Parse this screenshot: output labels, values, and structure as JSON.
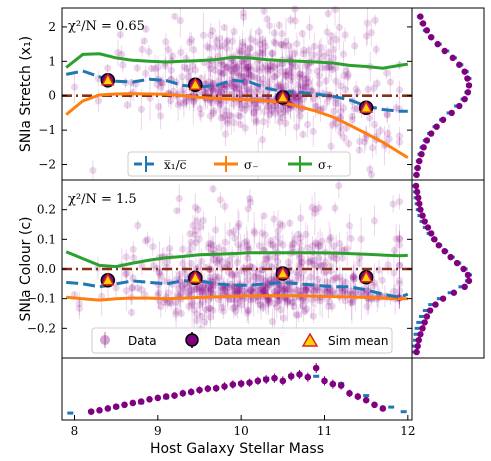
{
  "colors": {
    "data": "#800080",
    "data_alpha_fill": "#cc99cc",
    "model_mean": "#1f77b4",
    "sigma_minus": "#ff7f0e",
    "sigma_plus": "#2ca02c",
    "zero_line": "#8b2e16",
    "sim_marker_fill": "#ffd400",
    "sim_marker_edge": "#d62728"
  },
  "chart_data": [
    {
      "id": "stretch",
      "type": "scatter",
      "ylabel": "SNIa Stretch (x₁)",
      "annotation": "χ²/N = 0.65",
      "xlim": [
        7.85,
        12.05
      ],
      "ylim": [
        -2.45,
        2.55
      ],
      "yticks": [
        -2,
        -1,
        0,
        1,
        2
      ],
      "grid": false,
      "legend": {
        "placement": "bottom-center",
        "entries": [
          "x̅₁/c̅",
          "σ₋",
          "σ₊"
        ]
      },
      "lines": {
        "model_mean": {
          "x": [
            7.9,
            8.1,
            8.3,
            8.5,
            8.7,
            8.9,
            9.1,
            9.3,
            9.5,
            9.7,
            9.9,
            10.1,
            10.3,
            10.5,
            10.7,
            10.9,
            11.1,
            11.3,
            11.5,
            11.7,
            11.9,
            12.0
          ],
          "y": [
            0.62,
            0.72,
            0.55,
            0.42,
            0.4,
            0.48,
            0.44,
            0.3,
            0.25,
            0.3,
            0.45,
            0.4,
            0.22,
            0.12,
            0.1,
            0.05,
            -0.02,
            -0.12,
            -0.3,
            -0.4,
            -0.45,
            -0.45
          ]
        },
        "sigma_minus": {
          "x": [
            7.9,
            8.1,
            8.3,
            8.5,
            8.7,
            8.9,
            9.1,
            9.3,
            9.5,
            9.7,
            9.9,
            10.1,
            10.3,
            10.5,
            10.7,
            10.9,
            11.1,
            11.3,
            11.5,
            11.7,
            11.9,
            12.0
          ],
          "y": [
            -0.55,
            -0.15,
            0.02,
            0.05,
            0.06,
            0.05,
            0.04,
            0.0,
            -0.05,
            -0.08,
            -0.1,
            -0.12,
            -0.15,
            -0.2,
            -0.32,
            -0.45,
            -0.62,
            -0.85,
            -1.1,
            -1.35,
            -1.65,
            -1.8
          ]
        },
        "sigma_plus": {
          "x": [
            7.9,
            8.1,
            8.3,
            8.5,
            8.7,
            8.9,
            9.1,
            9.3,
            9.5,
            9.7,
            9.9,
            10.1,
            10.3,
            10.5,
            10.7,
            10.9,
            11.1,
            11.3,
            11.5,
            11.7,
            11.9,
            12.0
          ],
          "y": [
            0.82,
            1.2,
            1.22,
            1.1,
            1.03,
            1.0,
            0.98,
            1.0,
            1.02,
            1.05,
            1.12,
            1.1,
            1.05,
            1.02,
            1.0,
            0.98,
            0.95,
            0.88,
            0.85,
            0.8,
            0.88,
            0.92
          ]
        },
        "zero": {
          "y": 0.0
        }
      },
      "data_mean": {
        "x": [
          8.4,
          9.45,
          10.5,
          11.5
        ],
        "y": [
          0.45,
          0.32,
          -0.05,
          -0.35
        ],
        "yerr": [
          0.08,
          0.06,
          0.07,
          0.09
        ]
      },
      "sim_mean": {
        "x": [
          8.4,
          9.45,
          10.5,
          11.5
        ],
        "y": [
          0.45,
          0.32,
          -0.05,
          -0.35
        ]
      },
      "side_histogram": {
        "bins": [
          2.5,
          2.3,
          2.1,
          1.9,
          1.7,
          1.5,
          1.3,
          1.1,
          0.9,
          0.7,
          0.5,
          0.3,
          0.1,
          -0.1,
          -0.3,
          -0.5,
          -0.7,
          -0.9,
          -1.1,
          -1.3,
          -1.5,
          -1.7,
          -1.9,
          -2.1,
          -2.3
        ],
        "data": [
          0.06,
          0.1,
          0.15,
          0.22,
          0.3,
          0.42,
          0.55,
          0.7,
          0.82,
          0.92,
          0.97,
          1.0,
          0.98,
          0.92,
          0.82,
          0.68,
          0.52,
          0.4,
          0.3,
          0.22,
          0.16,
          0.12,
          0.08,
          0.05,
          0.03
        ],
        "model": [
          0.05,
          0.09,
          0.14,
          0.2,
          0.3,
          0.44,
          0.58,
          0.72,
          0.84,
          0.94,
          0.99,
          1.0,
          0.97,
          0.9,
          0.78,
          0.64,
          0.5,
          0.38,
          0.28,
          0.2,
          0.14,
          0.1,
          0.07,
          0.04,
          0.02
        ]
      }
    },
    {
      "id": "colour",
      "type": "scatter",
      "ylabel": "SNIa Colour (c)",
      "annotation": "χ²/N = 1.5",
      "xlim": [
        7.85,
        12.05
      ],
      "ylim": [
        -0.3,
        0.3
      ],
      "yticks": [
        -0.2,
        -0.1,
        0.0,
        0.1,
        0.2
      ],
      "grid": false,
      "legend": {
        "placement": "bottom-center",
        "entries": [
          "Data",
          "Data mean",
          "Sim mean"
        ]
      },
      "lines": {
        "model_mean": {
          "x": [
            7.9,
            8.1,
            8.3,
            8.5,
            8.7,
            8.9,
            9.1,
            9.3,
            9.5,
            9.7,
            9.9,
            10.1,
            10.3,
            10.5,
            10.7,
            10.9,
            11.1,
            11.3,
            11.5,
            11.7,
            11.9,
            12.0
          ],
          "y": [
            -0.045,
            -0.05,
            -0.06,
            -0.05,
            -0.04,
            -0.045,
            -0.05,
            -0.04,
            -0.04,
            -0.05,
            -0.055,
            -0.055,
            -0.05,
            -0.045,
            -0.05,
            -0.055,
            -0.06,
            -0.06,
            -0.07,
            -0.085,
            -0.095,
            -0.085
          ]
        },
        "sigma_minus": {
          "x": [
            7.9,
            8.1,
            8.3,
            8.5,
            8.7,
            8.9,
            9.1,
            9.3,
            9.5,
            9.7,
            9.9,
            10.1,
            10.3,
            10.5,
            10.7,
            10.9,
            11.1,
            11.3,
            11.5,
            11.7,
            11.9,
            12.0
          ],
          "y": [
            -0.095,
            -0.1,
            -0.105,
            -0.1,
            -0.098,
            -0.098,
            -0.1,
            -0.098,
            -0.096,
            -0.094,
            -0.092,
            -0.09,
            -0.09,
            -0.09,
            -0.09,
            -0.092,
            -0.093,
            -0.094,
            -0.096,
            -0.098,
            -0.1,
            -0.1
          ]
        },
        "sigma_plus": {
          "x": [
            7.9,
            8.1,
            8.3,
            8.5,
            8.7,
            8.9,
            9.1,
            9.3,
            9.5,
            9.7,
            9.9,
            10.1,
            10.3,
            10.5,
            10.7,
            10.9,
            11.1,
            11.3,
            11.5,
            11.7,
            11.9,
            12.0
          ],
          "y": [
            0.058,
            0.035,
            0.012,
            0.008,
            0.02,
            0.03,
            0.038,
            0.042,
            0.048,
            0.05,
            0.052,
            0.055,
            0.055,
            0.055,
            0.055,
            0.055,
            0.054,
            0.052,
            0.05,
            0.047,
            0.045,
            0.046
          ]
        },
        "zero": {
          "y": 0.0
        }
      },
      "data_mean": {
        "x": [
          8.4,
          9.45,
          10.5,
          11.5
        ],
        "y": [
          -0.038,
          -0.03,
          -0.015,
          -0.028
        ],
        "yerr": [
          0.006,
          0.005,
          0.005,
          0.006
        ]
      },
      "sim_mean": {
        "x": [
          8.4,
          9.45,
          10.5,
          11.5
        ],
        "y": [
          -0.038,
          -0.03,
          -0.015,
          -0.028
        ]
      },
      "side_histogram": {
        "bins": [
          0.28,
          0.26,
          0.24,
          0.22,
          0.2,
          0.18,
          0.16,
          0.14,
          0.12,
          0.1,
          0.08,
          0.06,
          0.04,
          0.02,
          0.0,
          -0.02,
          -0.04,
          -0.06,
          -0.08,
          -0.1,
          -0.12,
          -0.14,
          -0.16,
          -0.18,
          -0.2,
          -0.22,
          -0.24,
          -0.26,
          -0.28
        ],
        "data": [
          0.02,
          0.04,
          0.06,
          0.08,
          0.1,
          0.14,
          0.18,
          0.24,
          0.3,
          0.36,
          0.44,
          0.55,
          0.66,
          0.78,
          0.9,
          0.98,
          1.0,
          0.92,
          0.72,
          0.52,
          0.38,
          0.28,
          0.22,
          0.18,
          0.14,
          0.1,
          0.07,
          0.05,
          0.03
        ],
        "model": [
          0.01,
          0.02,
          0.03,
          0.05,
          0.07,
          0.1,
          0.14,
          0.2,
          0.27,
          0.35,
          0.45,
          0.56,
          0.68,
          0.8,
          0.92,
          1.0,
          0.98,
          0.86,
          0.66,
          0.46,
          0.3,
          0.2,
          0.13,
          0.08,
          0.05,
          0.03,
          0.02,
          0.01,
          0.01
        ]
      }
    },
    {
      "id": "mass_hist",
      "type": "scatter",
      "xlabel": "Host Galaxy Stellar Mass",
      "xlim": [
        7.85,
        12.05
      ],
      "xticks": [
        8,
        9,
        10,
        11,
        12
      ],
      "data": {
        "x": [
          8.2,
          8.3,
          8.4,
          8.5,
          8.6,
          8.7,
          8.8,
          8.9,
          9.0,
          9.1,
          9.2,
          9.3,
          9.4,
          9.5,
          9.6,
          9.7,
          9.8,
          9.9,
          10.0,
          10.1,
          10.2,
          10.3,
          10.4,
          10.5,
          10.6,
          10.7,
          10.8,
          10.9,
          11.0,
          11.1,
          11.2,
          11.3,
          11.4,
          11.5,
          11.6,
          11.7
        ],
        "y": [
          0.05,
          0.08,
          0.12,
          0.16,
          0.2,
          0.24,
          0.27,
          0.32,
          0.35,
          0.38,
          0.4,
          0.45,
          0.48,
          0.52,
          0.55,
          0.56,
          0.6,
          0.64,
          0.66,
          0.68,
          0.72,
          0.75,
          0.78,
          0.72,
          0.82,
          0.86,
          0.8,
          1.0,
          0.72,
          0.65,
          0.62,
          0.45,
          0.38,
          0.3,
          0.2,
          0.12
        ],
        "yerr": [
          0.03,
          0.04,
          0.05,
          0.05,
          0.06,
          0.06,
          0.06,
          0.07,
          0.07,
          0.07,
          0.07,
          0.08,
          0.08,
          0.08,
          0.08,
          0.08,
          0.09,
          0.09,
          0.09,
          0.09,
          0.09,
          0.1,
          0.1,
          0.1,
          0.1,
          0.1,
          0.1,
          0.11,
          0.1,
          0.1,
          0.09,
          0.08,
          0.08,
          0.07,
          0.06,
          0.05
        ]
      },
      "model": {
        "x": [
          7.95,
          8.2,
          8.5,
          8.8,
          9.1,
          9.4,
          9.7,
          10.0,
          10.3,
          10.6,
          10.9,
          11.2,
          11.5,
          11.8,
          11.95
        ],
        "y": [
          0.02,
          0.06,
          0.14,
          0.24,
          0.35,
          0.46,
          0.57,
          0.68,
          0.78,
          0.84,
          0.82,
          0.66,
          0.4,
          0.15,
          0.05
        ]
      }
    }
  ],
  "scatter_seed": 7
}
